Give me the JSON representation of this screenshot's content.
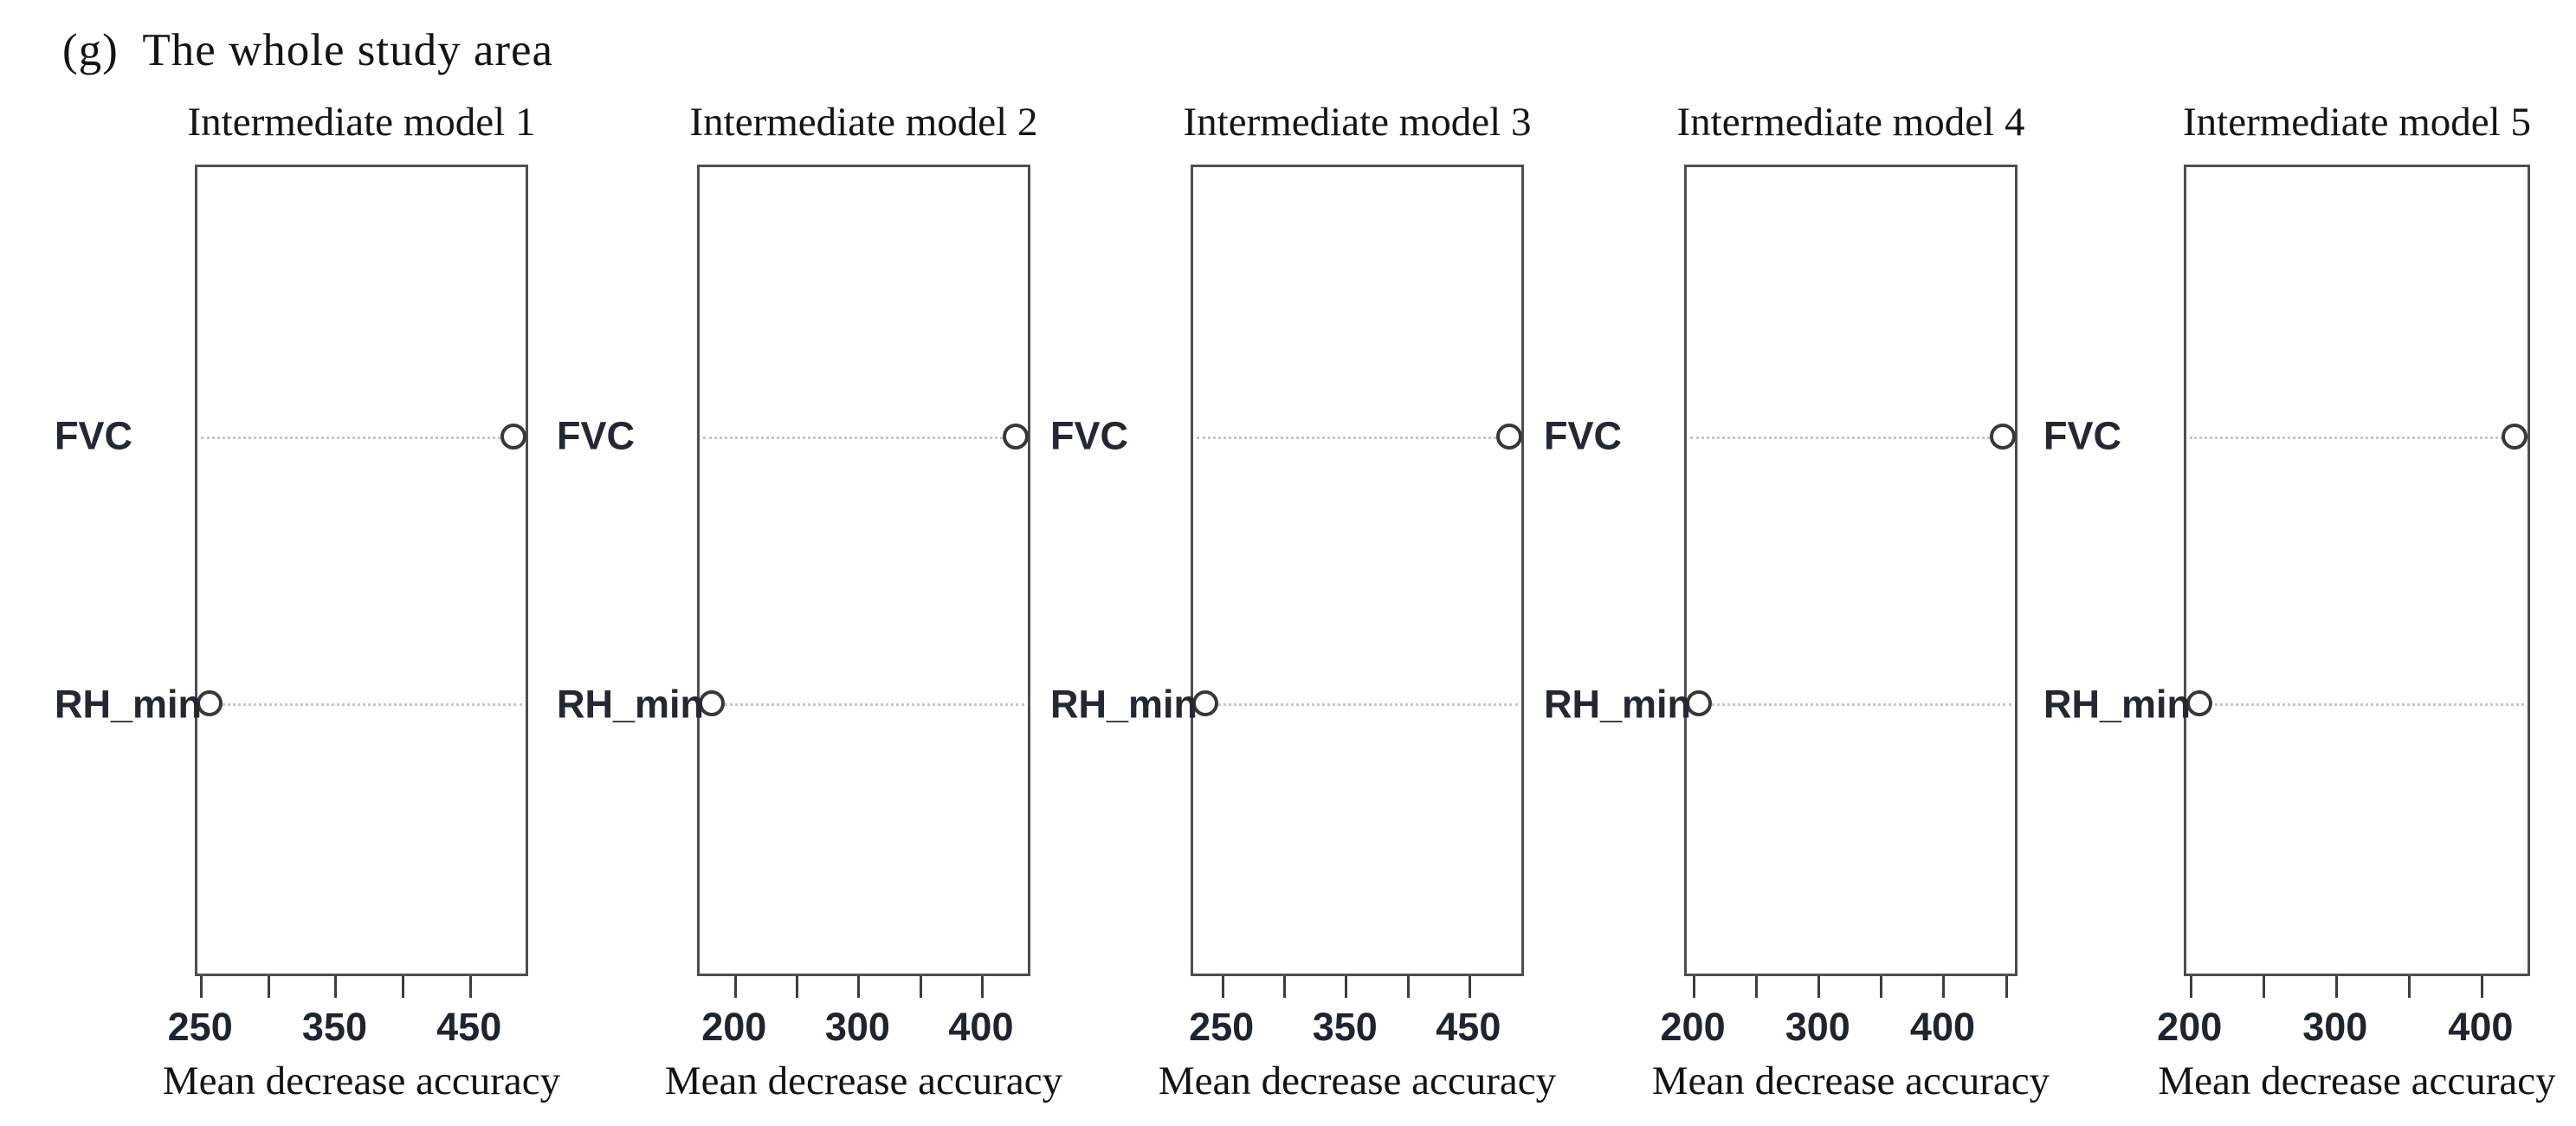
{
  "figure_label": "(g)  The whole study area",
  "row_labels": [
    "FVC",
    "RH_min"
  ],
  "x_axis_label": "Mean decrease accuracy",
  "colors": {
    "text": "#141414",
    "axis_label_text": "#232833",
    "tick_label_text": "#1e2530",
    "box_border": "#4e4e4e",
    "leader_dots": "#c7c7c7",
    "point_outline": "#373737",
    "point_fill": "#ffffff"
  },
  "chart_data": [
    {
      "type": "scatter",
      "title": "Intermediate model 1",
      "xlabel": "Mean decrease accuracy",
      "ylabel": "",
      "categories": [
        "FVC",
        "RH_min"
      ],
      "values": [
        485,
        255
      ],
      "ticks": [
        250,
        300,
        350,
        400,
        450
      ],
      "labeled_ticks": [
        250,
        350,
        450
      ],
      "xlim": [
        246,
        494
      ],
      "grid": "dotted horizontal leader lines",
      "legend": "none"
    },
    {
      "type": "scatter",
      "title": "Intermediate model 2",
      "xlabel": "Mean decrease accuracy",
      "ylabel": "",
      "categories": [
        "FVC",
        "RH_min"
      ],
      "values": [
        430,
        180
      ],
      "ticks": [
        200,
        250,
        300,
        350,
        400
      ],
      "labeled_ticks": [
        200,
        300,
        400
      ],
      "xlim": [
        170,
        440
      ],
      "grid": "dotted horizontal leader lines",
      "legend": "none"
    },
    {
      "type": "scatter",
      "title": "Intermediate model 3",
      "xlabel": "Mean decrease accuracy",
      "ylabel": "",
      "categories": [
        "FVC",
        "RH_min"
      ],
      "values": [
        485,
        235
      ],
      "ticks": [
        250,
        300,
        350,
        400,
        450
      ],
      "labeled_ticks": [
        250,
        350,
        450
      ],
      "xlim": [
        225,
        495
      ],
      "grid": "dotted horizontal leader lines",
      "legend": "none"
    },
    {
      "type": "scatter",
      "title": "Intermediate model 4",
      "xlabel": "Mean decrease accuracy",
      "ylabel": "",
      "categories": [
        "FVC",
        "RH_min"
      ],
      "values": [
        450,
        203
      ],
      "ticks": [
        200,
        250,
        300,
        350,
        400,
        450
      ],
      "labeled_ticks": [
        200,
        300,
        400
      ],
      "xlim": [
        193,
        460
      ],
      "grid": "dotted horizontal leader lines",
      "legend": "none"
    },
    {
      "type": "scatter",
      "title": "Intermediate model 5",
      "xlabel": "Mean decrease accuracy",
      "ylabel": "",
      "categories": [
        "FVC",
        "RH_min"
      ],
      "values": [
        425,
        205
      ],
      "ticks": [
        200,
        250,
        300,
        350,
        400
      ],
      "labeled_ticks": [
        200,
        300,
        400
      ],
      "xlim": [
        196,
        434
      ],
      "grid": "dotted horizontal leader lines",
      "legend": "none"
    }
  ],
  "layout": {
    "row_fractions": {
      "FVC": 33.4,
      "RH_min": 66.5
    }
  }
}
